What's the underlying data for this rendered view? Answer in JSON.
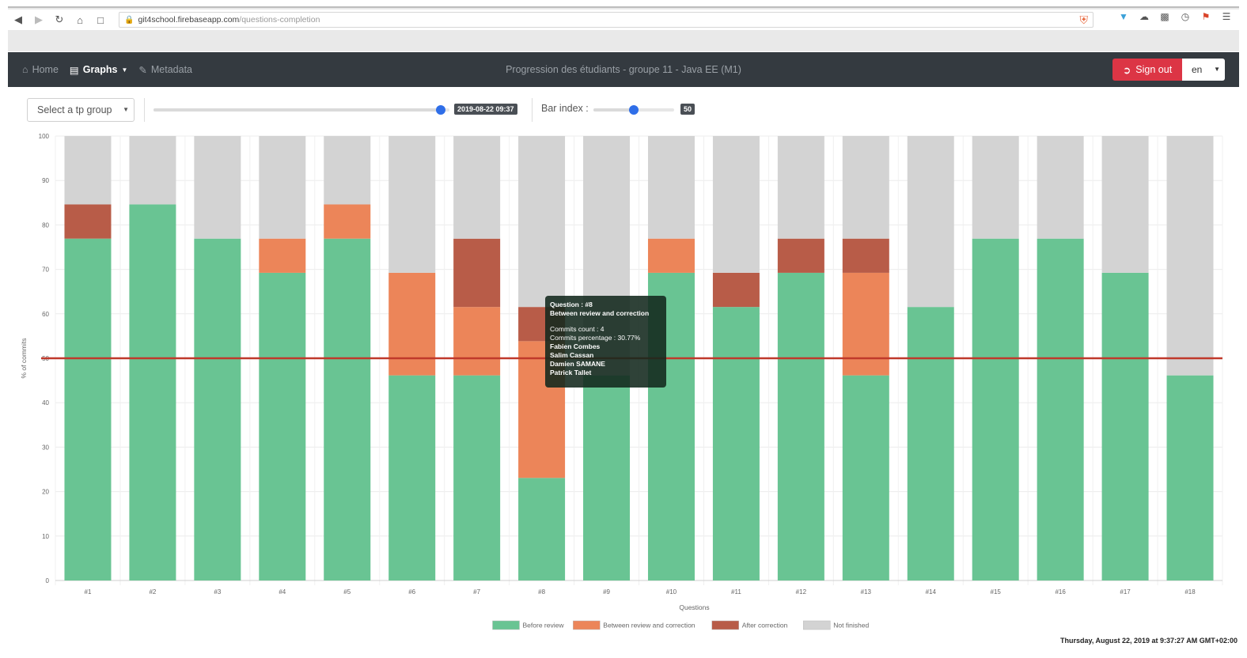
{
  "browser": {
    "url_host": "git4school.firebaseapp.com",
    "url_path": "/questions-completion"
  },
  "navbar": {
    "home": "Home",
    "graphs": "Graphs",
    "metadata": "Metadata",
    "title": "Progression des étudiants - groupe 11 - Java EE (M1)",
    "signout": "Sign out",
    "lang": "en"
  },
  "controls": {
    "group_select": "Select a tp group",
    "date_value": "2019-08-22 09:37",
    "date_slider_fraction": 0.97,
    "bar_index_label": "Bar index :",
    "bar_index_value": "50",
    "bar_index_fraction": 0.5
  },
  "tooltip": {
    "title": "Question : #8",
    "series": "Between review and correction",
    "count": "Commits count : 4",
    "percentage": "Commits percentage : 30.77%",
    "students": [
      "Fabien Combes",
      "Salim Cassan",
      "Damien SAMANE",
      "Patrick Tallet"
    ]
  },
  "datestamp": "Thursday, August 22, 2019 at 9:37:27 AM GMT+02:00",
  "colors": {
    "before": "#69c493",
    "between": "#ec8559",
    "after": "#b85c48",
    "not_finished": "#d3d3d3",
    "threshold": "#c0392b"
  },
  "chart_data": {
    "type": "bar",
    "stacked": true,
    "xlabel": "Questions",
    "ylabel": "% of commits",
    "ylim": [
      0,
      100
    ],
    "yticks": [
      0,
      10,
      20,
      30,
      40,
      50,
      60,
      70,
      80,
      90,
      100
    ],
    "threshold": 50,
    "categories": [
      "#1",
      "#2",
      "#3",
      "#4",
      "#5",
      "#6",
      "#7",
      "#8",
      "#9",
      "#10",
      "#11",
      "#12",
      "#13",
      "#14",
      "#15",
      "#16",
      "#17",
      "#18"
    ],
    "series": [
      {
        "name": "Before review",
        "color": "#69c493",
        "values": [
          76.92,
          84.62,
          76.92,
          69.23,
          76.92,
          46.15,
          46.15,
          23.08,
          46.15,
          69.23,
          61.54,
          69.23,
          46.15,
          61.54,
          76.92,
          76.92,
          69.23,
          46.15
        ]
      },
      {
        "name": "Between review and correction",
        "color": "#ec8559",
        "values": [
          0,
          0,
          0,
          7.69,
          7.69,
          23.08,
          15.38,
          30.77,
          0,
          7.69,
          0,
          0,
          23.08,
          0,
          0,
          0,
          0,
          0
        ]
      },
      {
        "name": "After correction",
        "color": "#b85c48",
        "values": [
          7.69,
          0,
          0,
          0,
          0,
          0,
          15.38,
          7.69,
          0,
          0,
          7.69,
          7.69,
          7.69,
          0,
          0,
          0,
          0,
          0
        ]
      },
      {
        "name": "Not finished",
        "color": "#d3d3d3",
        "values": [
          15.38,
          15.38,
          23.08,
          23.08,
          15.38,
          30.77,
          23.08,
          38.46,
          53.85,
          23.08,
          30.77,
          23.08,
          23.08,
          38.46,
          23.08,
          23.08,
          30.77,
          53.85
        ]
      }
    ],
    "legend_position": "bottom-center"
  }
}
